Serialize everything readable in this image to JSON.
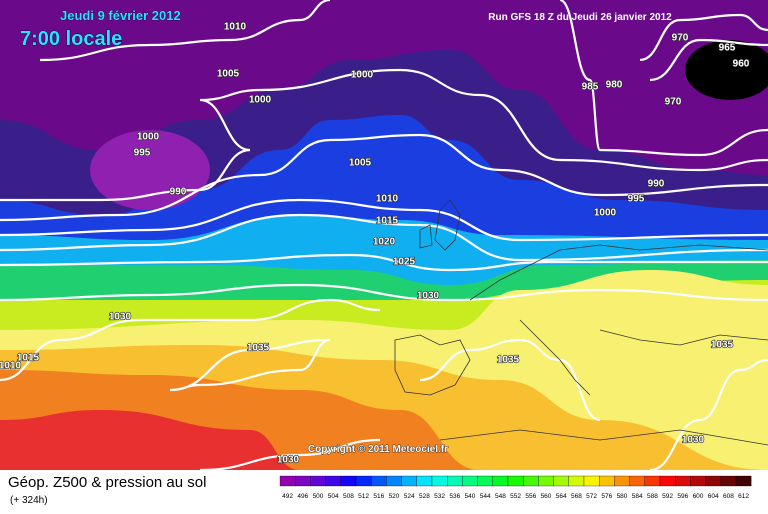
{
  "header": {
    "date": "Jeudi 9 février 2012",
    "time": "7:00 locale",
    "run": "Run GFS 18 Z du Jeudi 26 janvier 2012"
  },
  "isobar_labels": [
    "1010",
    "1005",
    "1000",
    "1000",
    "1000",
    "995",
    "990",
    "1005",
    "1010",
    "1015",
    "1020",
    "1025",
    "1030",
    "1030",
    "1035",
    "1015",
    "1010",
    "1035",
    "1035",
    "1030",
    "1030",
    "970",
    "965",
    "960",
    "985",
    "980",
    "970",
    "990",
    "995",
    "1000"
  ],
  "copyright": "Copyright © 2011 Meteociel.fr",
  "footer": {
    "title": "Géop. Z500 & pression au sol",
    "lead": "(+ 324h)"
  },
  "scale": [
    "492",
    "496",
    "500",
    "504",
    "508",
    "512",
    "516",
    "520",
    "524",
    "528",
    "532",
    "536",
    "540",
    "544",
    "548",
    "552",
    "556",
    "560",
    "564",
    "568",
    "572",
    "576",
    "580",
    "584",
    "588",
    "592",
    "596",
    "600",
    "604",
    "608",
    "612"
  ]
}
